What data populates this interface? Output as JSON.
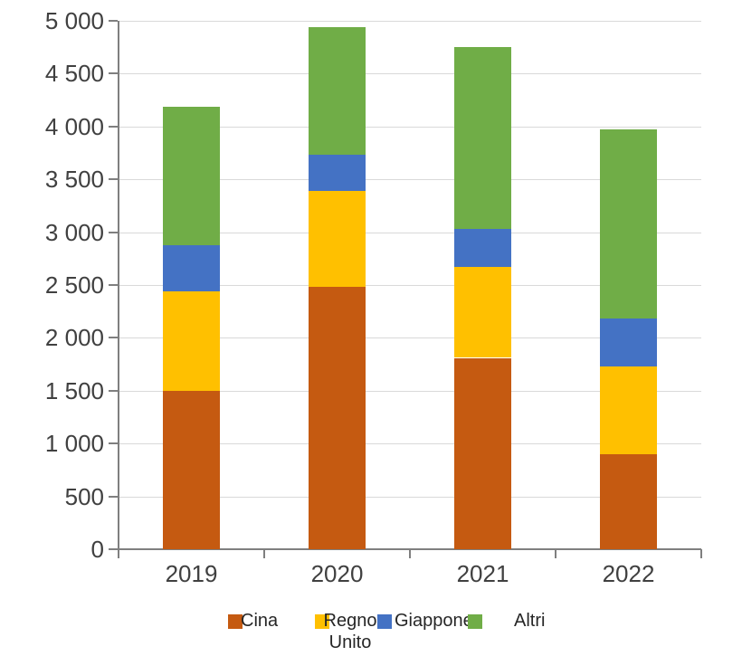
{
  "chart_data": {
    "type": "bar",
    "stacked": true,
    "title": "",
    "xlabel": "",
    "ylabel": "",
    "categories": [
      "2019",
      "2020",
      "2021",
      "2022"
    ],
    "series": [
      {
        "name": "Cina",
        "color": "#C55A11",
        "values": [
          1500,
          2480,
          1810,
          900
        ]
      },
      {
        "name": "Regno Unito",
        "color": "#FFC000",
        "values": [
          940,
          910,
          860,
          830
        ]
      },
      {
        "name": "Giappone",
        "color": "#4472C4",
        "values": [
          440,
          340,
          360,
          450
        ]
      },
      {
        "name": "Altri",
        "color": "#70AD47",
        "values": [
          1310,
          1210,
          1720,
          1790
        ]
      }
    ],
    "totals": [
      4190,
      4940,
      4750,
      3970
    ],
    "ylim": [
      0,
      5000
    ],
    "ytick_interval": 500,
    "ytick_labels": [
      "0",
      "500",
      "1 000",
      "1 500",
      "2 000",
      "2 500",
      "3 000",
      "3 500",
      "4 000",
      "4 500",
      "5 000"
    ],
    "grid": true,
    "legend_position": "bottom",
    "legend": [
      {
        "label": "Cina",
        "color": "#C55A11"
      },
      {
        "label": "Regno Unito",
        "color": "#FFC000"
      },
      {
        "label": "Giappone",
        "color": "#4472C4"
      },
      {
        "label": "Altri",
        "color": "#70AD47"
      }
    ],
    "colors": {
      "gridline": "#D9D9D9",
      "axis": "#7F7F7F",
      "label_text": "#404040",
      "background": "#FFFFFF"
    }
  }
}
